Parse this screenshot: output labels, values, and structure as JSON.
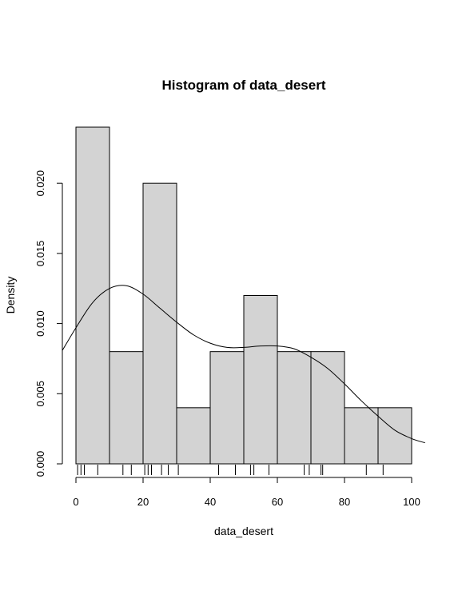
{
  "chart_data": {
    "type": "histogram",
    "title": "Histogram of data_desert",
    "xlabel": "data_desert",
    "ylabel": "Density",
    "xlim": [
      0,
      100
    ],
    "ylim": [
      0,
      0.024
    ],
    "x_ticks": [
      0,
      20,
      40,
      60,
      80,
      100
    ],
    "x_tick_labels": [
      "0",
      "20",
      "40",
      "60",
      "80",
      "100"
    ],
    "y_ticks": [
      0,
      0.005,
      0.01,
      0.015,
      0.02
    ],
    "y_tick_labels": [
      "0.000",
      "0.005",
      "0.010",
      "0.015",
      "0.020"
    ],
    "bins": [
      {
        "start": 0,
        "end": 10,
        "density": 0.024
      },
      {
        "start": 10,
        "end": 20,
        "density": 0.008
      },
      {
        "start": 20,
        "end": 30,
        "density": 0.02
      },
      {
        "start": 30,
        "end": 40,
        "density": 0.004
      },
      {
        "start": 40,
        "end": 50,
        "density": 0.008
      },
      {
        "start": 50,
        "end": 60,
        "density": 0.012
      },
      {
        "start": 60,
        "end": 70,
        "density": 0.008
      },
      {
        "start": 70,
        "end": 80,
        "density": 0.008
      },
      {
        "start": 80,
        "end": 90,
        "density": 0.004
      },
      {
        "start": 90,
        "end": 100,
        "density": 0.004
      }
    ],
    "density_curve": {
      "x": [
        -4,
        0,
        5,
        10,
        15,
        20,
        25,
        30,
        35,
        40,
        45,
        50,
        55,
        60,
        65,
        70,
        75,
        80,
        85,
        90,
        95,
        100,
        104
      ],
      "y": [
        0.0081,
        0.0097,
        0.0115,
        0.0125,
        0.0127,
        0.0121,
        0.0111,
        0.0101,
        0.0092,
        0.0086,
        0.0083,
        0.0083,
        0.0084,
        0.0084,
        0.0082,
        0.0076,
        0.0068,
        0.0057,
        0.0045,
        0.0034,
        0.0024,
        0.0018,
        0.0015
      ]
    },
    "rug": [
      0.5,
      1.5,
      2.5,
      6.5,
      14,
      16.5,
      20.5,
      21.5,
      22.5,
      25.5,
      27.5,
      30.5,
      42.5,
      47.5,
      52,
      53,
      57.5,
      68,
      69.5,
      73,
      73.5,
      86.5,
      91.5
    ],
    "fill_color": "#d3d3d3",
    "stroke_color": "#000000",
    "grid": false,
    "legend": false
  }
}
